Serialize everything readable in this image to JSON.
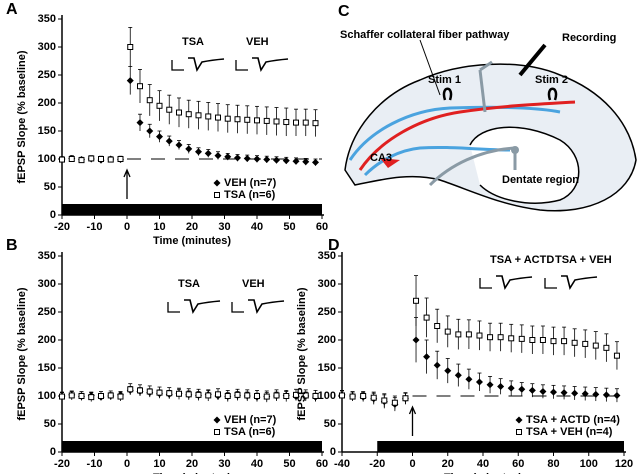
{
  "chart_data": [
    {
      "type": "scatter",
      "panel_label": "A",
      "x_label": "Time (minutes)",
      "y_label": "fEPSP Slope (% baseline)",
      "xlim": [
        -20,
        60
      ],
      "xticks": [
        -20,
        -10,
        0,
        10,
        20,
        30,
        40,
        50,
        60
      ],
      "ylim": [
        0,
        350
      ],
      "yticks": [
        0,
        50,
        100,
        150,
        200,
        250,
        300,
        350
      ],
      "x": [
        -20,
        -17,
        -14,
        -11,
        -8,
        -5,
        -2,
        1,
        4,
        7,
        10,
        13,
        16,
        19,
        22,
        25,
        28,
        31,
        34,
        37,
        40,
        43,
        46,
        49,
        52,
        55,
        58
      ],
      "series": [
        {
          "name": "VEH (n=7)",
          "marker": "diamond",
          "color": "#000000",
          "values": [
            100,
            101,
            99,
            100,
            98,
            100,
            99,
            240,
            165,
            150,
            140,
            132,
            125,
            118,
            113,
            110,
            106,
            104,
            102,
            101,
            100,
            99,
            98,
            97,
            96,
            95,
            94
          ],
          "errors": [
            4,
            5,
            4,
            4,
            5,
            4,
            4,
            25,
            15,
            12,
            10,
            9,
            8,
            8,
            7,
            7,
            7,
            6,
            6,
            6,
            6,
            6,
            6,
            6,
            6,
            6,
            6
          ]
        },
        {
          "name": "TSA (n=6)",
          "marker": "square",
          "color": "#000000",
          "values": [
            99,
            100,
            98,
            101,
            100,
            99,
            100,
            300,
            230,
            205,
            195,
            188,
            183,
            180,
            178,
            176,
            174,
            172,
            171,
            170,
            169,
            168,
            167,
            166,
            165,
            165,
            164
          ],
          "errors": [
            5,
            5,
            5,
            5,
            5,
            5,
            5,
            35,
            30,
            28,
            27,
            26,
            26,
            25,
            25,
            25,
            25,
            25,
            25,
            25,
            25,
            25,
            25,
            25,
            24,
            24,
            24
          ]
        }
      ],
      "reference_line": 100,
      "arrow_x": 0,
      "treatment_bar": [
        -20,
        60
      ],
      "legend": "lower right",
      "inset_labels": [
        "TSA",
        "VEH"
      ]
    },
    {
      "type": "scatter",
      "panel_label": "B",
      "x_label": "Time (minutes)",
      "y_label": "fEPSP Slope (% baseline)",
      "xlim": [
        -20,
        60
      ],
      "xticks": [
        -20,
        -10,
        0,
        10,
        20,
        30,
        40,
        50,
        60
      ],
      "ylim": [
        0,
        350
      ],
      "yticks": [
        0,
        50,
        100,
        150,
        200,
        250,
        300,
        350
      ],
      "x": [
        -20,
        -17,
        -14,
        -11,
        -8,
        -5,
        -2,
        1,
        4,
        7,
        10,
        13,
        16,
        19,
        22,
        25,
        28,
        31,
        34,
        37,
        40,
        43,
        46,
        49,
        52,
        55,
        58
      ],
      "series": [
        {
          "name": "VEH (n=7)",
          "marker": "diamond",
          "color": "#000000",
          "values": [
            100,
            102,
            99,
            101,
            98,
            100,
            102,
            110,
            108,
            106,
            104,
            103,
            105,
            102,
            101,
            103,
            100,
            99,
            101,
            100,
            98,
            99,
            100,
            101,
            99,
            100,
            98
          ],
          "errors": [
            6,
            6,
            6,
            6,
            6,
            6,
            6,
            7,
            7,
            7,
            7,
            7,
            7,
            7,
            7,
            7,
            7,
            7,
            7,
            7,
            7,
            7,
            7,
            7,
            7,
            7,
            7
          ]
        },
        {
          "name": "TSA (n=6)",
          "marker": "square",
          "color": "#000000",
          "values": [
            99,
            101,
            100,
            98,
            100,
            101,
            99,
            112,
            110,
            108,
            106,
            105,
            104,
            103,
            102,
            101,
            103,
            100,
            102,
            101,
            100,
            99,
            101,
            100,
            102,
            101,
            100
          ],
          "errors": [
            8,
            8,
            8,
            8,
            8,
            8,
            8,
            10,
            10,
            10,
            10,
            10,
            10,
            10,
            10,
            10,
            10,
            10,
            10,
            10,
            10,
            10,
            10,
            10,
            10,
            10,
            10
          ]
        }
      ],
      "treatment_bar": [
        -20,
        60
      ],
      "legend": "lower right",
      "inset_labels": [
        "TSA",
        "VEH"
      ]
    },
    {
      "type": "scatter",
      "panel_label": "D",
      "x_label": "Time (minutes)",
      "y_label": "fEPSP Slope (% baseline)",
      "xlim": [
        -40,
        120
      ],
      "xticks": [
        -40,
        -20,
        0,
        20,
        40,
        60,
        80,
        100,
        120
      ],
      "ylim": [
        0,
        350
      ],
      "yticks": [
        0,
        50,
        100,
        150,
        200,
        250,
        300,
        350
      ],
      "x": [
        -40,
        -34,
        -28,
        -22,
        -16,
        -10,
        -4,
        2,
        8,
        14,
        20,
        26,
        32,
        38,
        44,
        50,
        56,
        62,
        68,
        74,
        80,
        86,
        92,
        98,
        104,
        110,
        116
      ],
      "series": [
        {
          "name": "TSA + ACTD (n=4)",
          "marker": "diamond",
          "color": "#000000",
          "values": [
            102,
            100,
            98,
            95,
            90,
            85,
            95,
            200,
            170,
            155,
            145,
            137,
            130,
            125,
            120,
            117,
            114,
            112,
            110,
            108,
            107,
            106,
            105,
            104,
            103,
            102,
            101
          ],
          "errors": [
            8,
            8,
            8,
            10,
            12,
            12,
            10,
            40,
            30,
            25,
            22,
            20,
            18,
            16,
            15,
            14,
            13,
            12,
            12,
            12,
            12,
            12,
            12,
            12,
            12,
            12,
            12
          ]
        },
        {
          "name": "TSA + VEH (n=4)",
          "marker": "square",
          "color": "#000000",
          "values": [
            101,
            99,
            100,
            97,
            92,
            88,
            96,
            270,
            240,
            225,
            215,
            210,
            210,
            208,
            205,
            205,
            203,
            202,
            200,
            200,
            198,
            198,
            195,
            193,
            190,
            186,
            172
          ],
          "errors": [
            8,
            8,
            8,
            10,
            12,
            12,
            10,
            45,
            35,
            30,
            28,
            27,
            26,
            26,
            25,
            25,
            25,
            25,
            25,
            25,
            25,
            25,
            25,
            25,
            25,
            25,
            25
          ]
        }
      ],
      "reference_line": 100,
      "arrow_x": 0,
      "treatment_bar": [
        -20,
        120
      ],
      "legend": "lower right",
      "inset_labels": [
        "TSA + ACTD",
        "TSA + VEH"
      ]
    }
  ],
  "diagram": {
    "panel_label": "C",
    "pathway": "Schaffer collateral fiber pathway",
    "recording": "Recording",
    "stim_1": "Stim 1",
    "stim_2": "Stim 2",
    "ca3": "CA3",
    "dentate": "Dentate region"
  }
}
